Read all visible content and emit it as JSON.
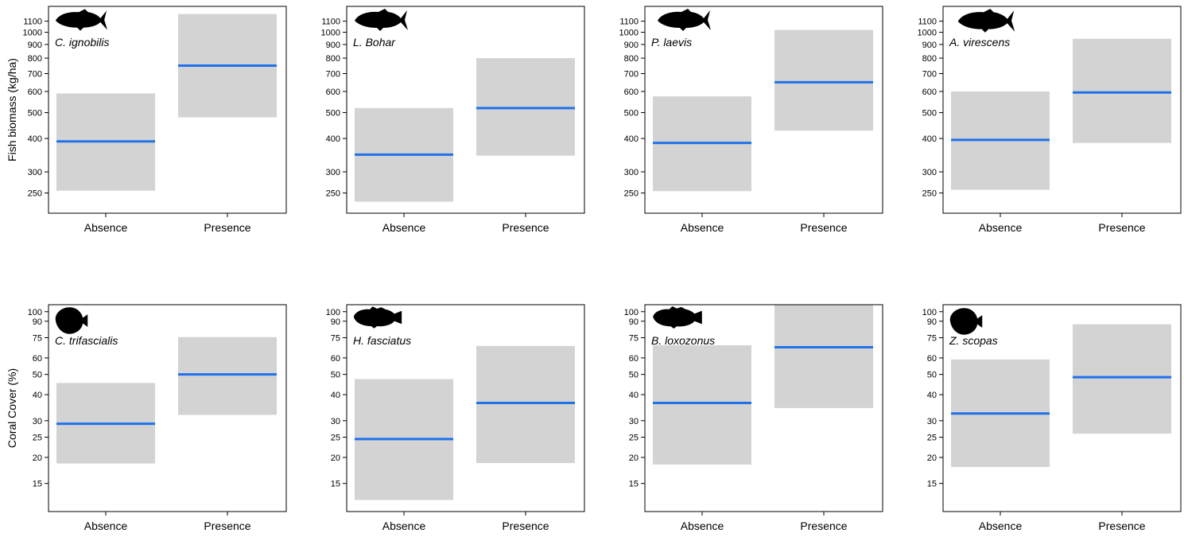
{
  "rows": [
    {
      "ylabel": "Fish biomass (kg/ha)",
      "yticks": [
        250,
        300,
        400,
        500,
        600,
        700,
        800,
        900,
        1000,
        1100
      ],
      "ylim": [
        210,
        1250
      ],
      "scale": "log"
    },
    {
      "ylabel": "Coral Cover (%)",
      "yticks": [
        15,
        20,
        25,
        30,
        40,
        50,
        60,
        75,
        90,
        100
      ],
      "ylim": [
        11,
        108
      ],
      "scale": "log"
    }
  ],
  "chart_data": [
    {
      "type": "bar",
      "row": 0,
      "species": "C. ignobilis",
      "categories": [
        "Absence",
        "Presence"
      ],
      "series": [
        {
          "values": [
            390,
            750
          ]
        }
      ],
      "intervals": [
        [
          255,
          590
        ],
        [
          480,
          1170
        ]
      ]
    },
    {
      "type": "bar",
      "row": 0,
      "species": "L. Bohar",
      "categories": [
        "Absence",
        "Presence"
      ],
      "series": [
        {
          "values": [
            348,
            520
          ]
        }
      ],
      "intervals": [
        [
          232,
          520
        ],
        [
          345,
          800
        ]
      ]
    },
    {
      "type": "bar",
      "row": 0,
      "species": "P. laevis",
      "categories": [
        "Absence",
        "Presence"
      ],
      "series": [
        {
          "values": [
            385,
            650
          ]
        }
      ],
      "intervals": [
        [
          254,
          575
        ],
        [
          428,
          1020
        ]
      ]
    },
    {
      "type": "bar",
      "row": 0,
      "species": "A. virescens",
      "categories": [
        "Absence",
        "Presence"
      ],
      "series": [
        {
          "values": [
            395,
            595
          ]
        }
      ],
      "intervals": [
        [
          257,
          600
        ],
        [
          385,
          945
        ]
      ]
    },
    {
      "type": "bar",
      "row": 1,
      "species": "C. trifascialis",
      "categories": [
        "Absence",
        "Presence"
      ],
      "series": [
        {
          "values": [
            29,
            50
          ]
        }
      ],
      "intervals": [
        [
          18.7,
          45.5
        ],
        [
          32.0,
          75.5
        ]
      ]
    },
    {
      "type": "bar",
      "row": 1,
      "species": "H. fasciatus",
      "categories": [
        "Absence",
        "Presence"
      ],
      "series": [
        {
          "values": [
            24.5,
            36.5
          ]
        }
      ],
      "intervals": [
        [
          12.5,
          47.5
        ],
        [
          18.8,
          68.5
        ]
      ]
    },
    {
      "type": "bar",
      "row": 1,
      "species": "B. loxozonus",
      "categories": [
        "Absence",
        "Presence"
      ],
      "series": [
        {
          "values": [
            36.5,
            67.5
          ]
        }
      ],
      "intervals": [
        [
          18.5,
          69.0
        ],
        [
          34.5,
          108.0
        ]
      ]
    },
    {
      "type": "bar",
      "row": 1,
      "species": "Z. scopas",
      "categories": [
        "Absence",
        "Presence"
      ],
      "series": [
        {
          "values": [
            32.5,
            48.5
          ]
        }
      ],
      "intervals": [
        [
          18.0,
          59.0
        ],
        [
          26.0,
          87.0
        ]
      ]
    }
  ],
  "colors": {
    "estimate": "#1f72ea",
    "interval": "#d3d3d3",
    "axis": "#000000"
  },
  "icons": [
    "trevally-silhouette-icon",
    "snapper-silhouette-icon",
    "grouper-silhouette-icon",
    "jobfish-silhouette-icon",
    "butterflyfish-silhouette-icon",
    "hawkfish-silhouette-icon",
    "hawkfish-silhouette-icon",
    "tang-silhouette-icon"
  ]
}
